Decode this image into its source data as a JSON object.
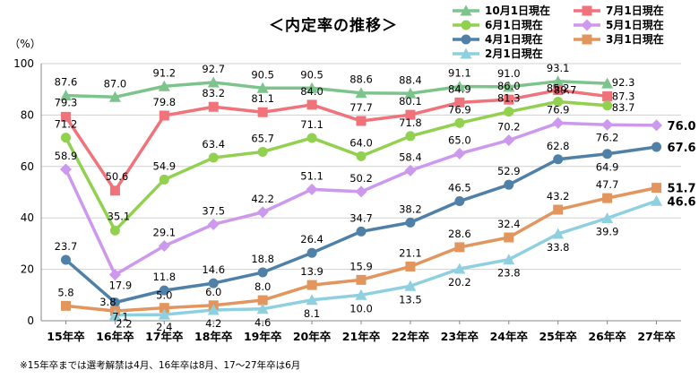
{
  "chart_data": {
    "type": "line",
    "title": "＜内定率の推移＞",
    "ylabel": "（%）",
    "xlabel": "",
    "ylim": [
      0,
      100
    ],
    "yticks": [
      0,
      20,
      40,
      60,
      80,
      100
    ],
    "grid": true,
    "legend_position": "top-right",
    "categories": [
      "15年卒",
      "16年卒",
      "17年卒",
      "18年卒",
      "19年卒",
      "20年卒",
      "21年卒",
      "22年卒",
      "23年卒",
      "24年卒",
      "25年卒",
      "26年卒",
      "27年卒"
    ],
    "series": [
      {
        "name": "10月1日現在",
        "color": "#7cc48c",
        "marker": "triangle",
        "values": [
          87.6,
          87.0,
          91.2,
          92.7,
          90.5,
          90.5,
          88.6,
          88.4,
          91.1,
          91.0,
          93.1,
          92.3,
          null
        ]
      },
      {
        "name": "7月1日現在",
        "color": "#f0727a",
        "marker": "square",
        "values": [
          79.3,
          50.6,
          79.8,
          83.2,
          81.1,
          84.0,
          77.7,
          80.1,
          84.9,
          86.0,
          89.7,
          87.3,
          null
        ]
      },
      {
        "name": "6月1日現在",
        "color": "#92d050",
        "marker": "circle",
        "values": [
          71.2,
          35.1,
          54.9,
          63.4,
          65.7,
          71.1,
          64.0,
          71.8,
          76.9,
          81.3,
          85.2,
          83.7,
          null
        ]
      },
      {
        "name": "5月1日現在",
        "color": "#cc99ee",
        "marker": "diamond",
        "values": [
          58.9,
          17.9,
          29.1,
          37.5,
          42.2,
          51.1,
          50.2,
          58.4,
          65.0,
          70.2,
          76.9,
          76.2,
          76.0
        ]
      },
      {
        "name": "4月1日現在",
        "color": "#4f81a8",
        "marker": "circle",
        "values": [
          23.7,
          7.1,
          11.8,
          14.6,
          18.8,
          26.4,
          34.7,
          38.2,
          46.5,
          52.9,
          62.8,
          64.9,
          67.6
        ]
      },
      {
        "name": "3月1日現在",
        "color": "#e2965e",
        "marker": "square",
        "values": [
          5.8,
          3.8,
          5.0,
          6.0,
          8.0,
          13.9,
          15.9,
          21.1,
          28.6,
          32.4,
          43.2,
          47.7,
          51.7
        ]
      },
      {
        "name": "2月1日現在",
        "color": "#8fd0e0",
        "marker": "triangle",
        "values": [
          null,
          2.2,
          2.4,
          4.2,
          4.6,
          8.1,
          10.0,
          13.5,
          20.2,
          23.8,
          33.8,
          39.9,
          46.6
        ]
      }
    ],
    "footnote": "※15年卒までは選考解禁は4月、16年卒は8月、17～27年卒は6月"
  }
}
